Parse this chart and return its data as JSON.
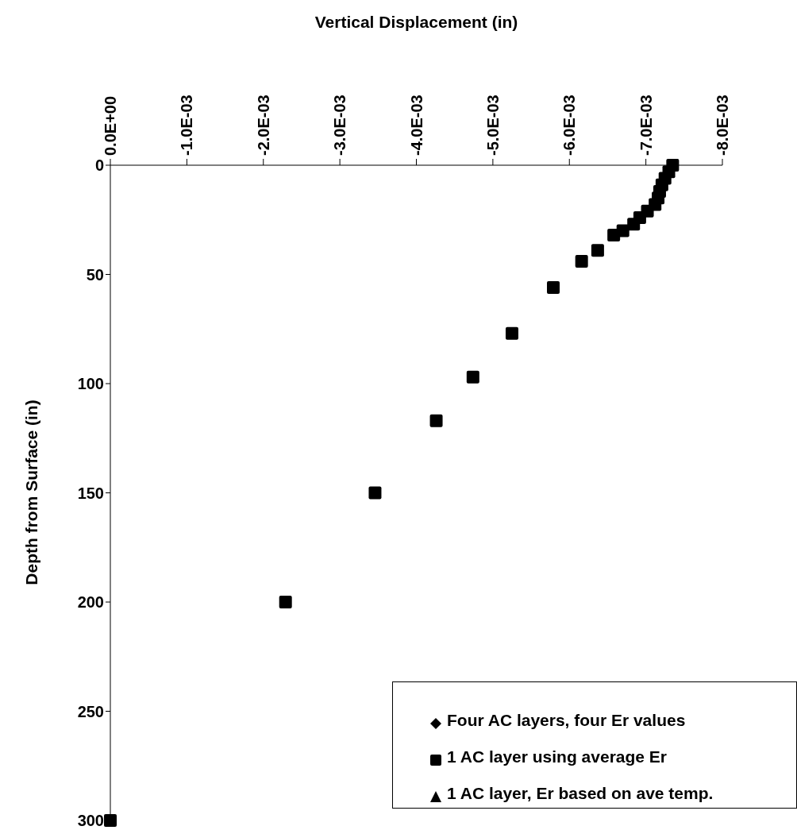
{
  "chart_data": {
    "type": "scatter",
    "title": "Vertical Displacement (in)",
    "ylabel": "Depth from Surface (in)",
    "x": [
      -0.00735,
      -0.0073,
      -0.00725,
      -0.00721,
      -0.00718,
      -0.00716,
      -0.00712,
      -0.00702,
      -0.00692,
      -0.00684,
      -0.0067,
      -0.00658,
      -0.00637,
      -0.00616,
      -0.00579,
      -0.00525,
      -0.00474,
      -0.00426,
      -0.00346,
      -0.00229,
      0
    ],
    "series": [
      {
        "name": "Four AC layers, four Er values",
        "color": "#000000",
        "marker": "diamond",
        "values": [
          null,
          null,
          null,
          null,
          null,
          null,
          null,
          null,
          null,
          null,
          null,
          null,
          null,
          null,
          null,
          null,
          null,
          null,
          null,
          null,
          null
        ]
      },
      {
        "name": "1 AC layer using average Er",
        "color": "#000000",
        "marker": "square",
        "values": [
          0,
          3,
          6,
          9,
          12,
          15,
          18,
          21,
          24,
          27,
          30,
          32,
          39,
          44,
          56,
          77,
          97,
          117,
          150,
          200,
          300
        ]
      },
      {
        "name": "1 AC layer, Er based on ave temp.",
        "color": "#000000",
        "marker": "triangle",
        "values": [
          null,
          null,
          null,
          null,
          null,
          null,
          null,
          null,
          null,
          null,
          null,
          null,
          null,
          null,
          null,
          null,
          null,
          null,
          null,
          null,
          null
        ]
      }
    ],
    "xlim": [
      0,
      -0.008
    ],
    "xticks": [
      {
        "value": 0,
        "label": "0.0E+00"
      },
      {
        "value": -0.001,
        "label": "-1.0E-03"
      },
      {
        "value": -0.002,
        "label": "-2.0E-03"
      },
      {
        "value": -0.003,
        "label": "-3.0E-03"
      },
      {
        "value": -0.004,
        "label": "-4.0E-03"
      },
      {
        "value": -0.005,
        "label": "-5.0E-03"
      },
      {
        "value": -0.006,
        "label": "-6.0E-03"
      },
      {
        "value": -0.007,
        "label": "-7.0E-03"
      },
      {
        "value": -0.008,
        "label": "-8.0E-03"
      }
    ],
    "ylim": [
      300,
      0
    ],
    "yticks": [
      0,
      50,
      100,
      150,
      200,
      250,
      300
    ],
    "grid": false,
    "legend": "bottom right"
  }
}
